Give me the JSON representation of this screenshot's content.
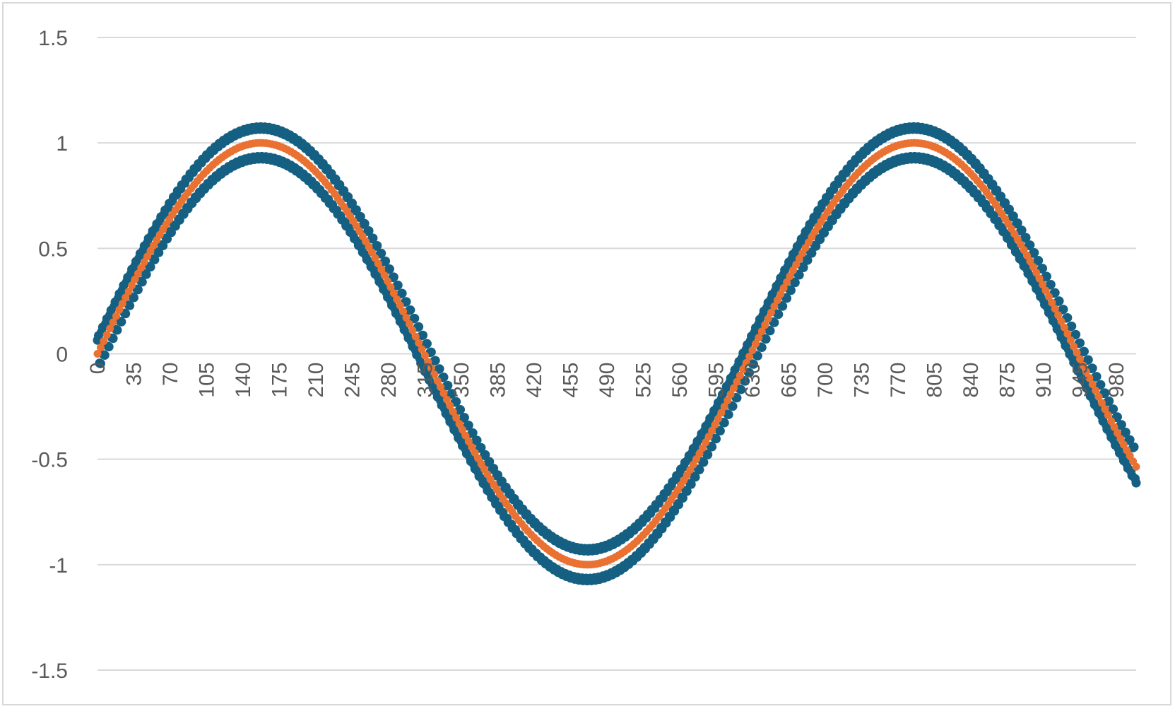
{
  "chart_data": {
    "type": "line",
    "title": "",
    "xlabel": "",
    "ylabel": "",
    "xlim": [
      0,
      999
    ],
    "ylim": [
      -1.5,
      1.5
    ],
    "y_ticks": [
      1.5,
      1,
      0.5,
      0,
      -0.5,
      -1,
      -1.5
    ],
    "y_tick_labels": [
      "1.5",
      "1",
      "0.5",
      "0",
      "-0.5",
      "-1",
      "-1.5"
    ],
    "x_ticks": [
      0,
      35,
      70,
      105,
      140,
      175,
      210,
      245,
      280,
      315,
      350,
      385,
      420,
      455,
      490,
      525,
      560,
      595,
      630,
      665,
      700,
      735,
      770,
      805,
      840,
      875,
      910,
      945,
      980
    ],
    "x_tick_labels": [
      "0",
      "35",
      "70",
      "105",
      "140",
      "175",
      "210",
      "245",
      "280",
      "315",
      "350",
      "385",
      "420",
      "455",
      "490",
      "525",
      "560",
      "595",
      "630",
      "665",
      "700",
      "735",
      "770",
      "805",
      "840",
      "875",
      "910",
      "945",
      "980"
    ],
    "grid": true,
    "legend": "none",
    "series": [
      {
        "color": "#156082",
        "marker": "circle",
        "description_values": "sine wave with period 628, amplitude 1, plus high-frequency noise of amplitude ~0.1, sampled at x = 0..999",
        "function": {
          "amplitude": 1.0,
          "period": 628.318,
          "phase": 0,
          "noise_amplitude": 0.1,
          "noise_period": 4
        },
        "count": 1000
      },
      {
        "color": "#E97132",
        "marker": "circle",
        "function": {
          "amplitude": 1.0,
          "period": 628.318,
          "phase": 0,
          "noise_amplitude": 0,
          "noise_period": 4
        },
        "count": 1000
      }
    ]
  }
}
